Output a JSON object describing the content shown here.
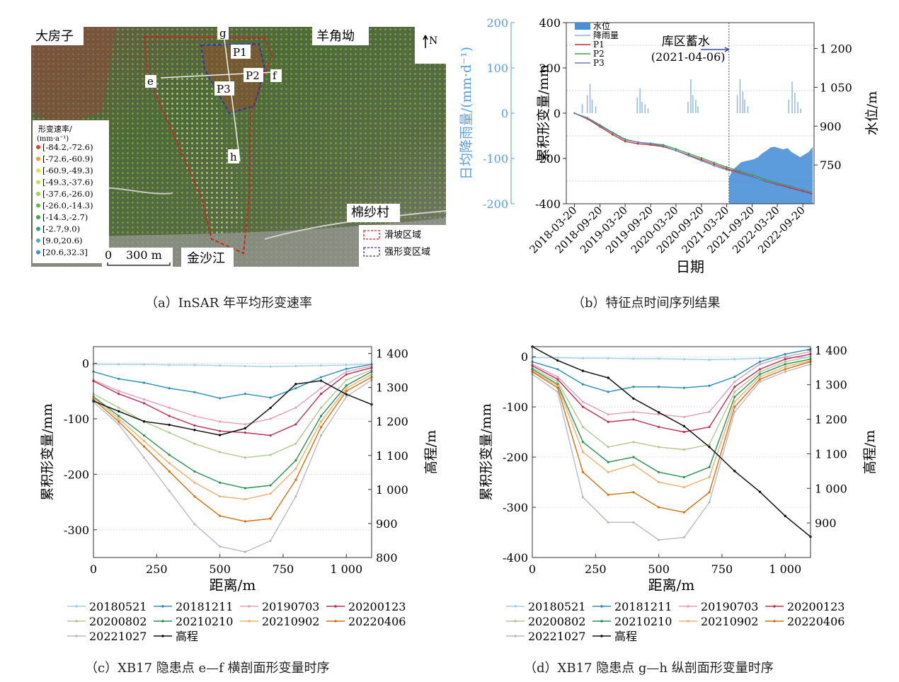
{
  "panels": {
    "a": {
      "caption": "（a）InSAR 年平均形变速率",
      "places": {
        "dafangzi": "大房子",
        "yangjiaogu": "羊角坳",
        "mianshacun": "棉纱村",
        "jinshajiang": "金沙江"
      },
      "points": {
        "g": "g",
        "e": "e",
        "f": "f",
        "h": "h",
        "p1": "P1",
        "p2": "P2",
        "p3": "P3"
      },
      "north": "N",
      "legend_title": "形变速率/",
      "legend_unit": "(mm·a⁻¹)",
      "legend_items": [
        {
          "label": "[-84.2,-72.6)",
          "color": "#e8401e"
        },
        {
          "label": "[-72.6,-60.9)",
          "color": "#f0a030"
        },
        {
          "label": "[-60.9,-49.3)",
          "color": "#e6e234"
        },
        {
          "label": "[-49.3,-37.6)",
          "color": "#c8e040"
        },
        {
          "label": "[-37.6,-26.0)",
          "color": "#9ed64a"
        },
        {
          "label": "[-26.0,-14.3)",
          "color": "#5ebf3c"
        },
        {
          "label": "[-14.3,-2.7)",
          "color": "#3aaa4a"
        },
        {
          "label": "[-2.7,9.0)",
          "color": "#3c9e7a"
        },
        {
          "label": "[9.0,20.6)",
          "color": "#44b2c8"
        },
        {
          "label": "[20.6,32.3]",
          "color": "#3c8ed6"
        }
      ],
      "scale_zero": "0",
      "scale_label": "300 m",
      "zone_legend": [
        {
          "label": "滑坡区域",
          "color": "#d0201c"
        },
        {
          "label": "强形变区域",
          "color": "#2a3aa0"
        }
      ]
    },
    "b_caption": "（b）特征点时间序列结果",
    "c_caption": "（c）XB17 隐患点 e—f 横剖面形变量时序",
    "d_caption": "（d）XB17 隐患点 g—h 纵剖面形变量时序"
  },
  "chart_data": [
    {
      "id": "b",
      "type": "line",
      "xlabel": "日期",
      "ylabel": "累积形变量/mm",
      "y2label": "日均降雨量/(mm·d⁻¹)",
      "y3label": "水位/m",
      "x_range": [
        "2018-01-20",
        "2022-12-10"
      ],
      "x_ticks": [
        "2018-03-20",
        "2018-09-20",
        "2019-03-20",
        "2019-09-20",
        "2020-03-20",
        "2020-09-20",
        "2021-03-20",
        "2021-09-20",
        "2022-03-20",
        "2022-09-20"
      ],
      "ylim": [
        -400,
        400
      ],
      "yticks": [
        -400,
        -200,
        0,
        200,
        400
      ],
      "y2lim": [
        -200,
        200
      ],
      "y2ticks": [
        -200,
        -100,
        0,
        100,
        200
      ],
      "y3lim": [
        600,
        1300
      ],
      "y3ticks": [
        {
          "v": 750,
          "label": "750"
        },
        {
          "v": 900,
          "label": "900"
        },
        {
          "v": 1050,
          "label": "1 050"
        },
        {
          "v": 1200,
          "label": "1 200"
        }
      ],
      "annotation": {
        "text1": "库区蓄水",
        "text2": "(2021-04-06)",
        "date": "2021-04-06"
      },
      "legend": [
        "水位",
        "降雨量",
        "P1",
        "P2",
        "P3"
      ],
      "series": [
        {
          "name": "P1",
          "color": "#c0343a",
          "x": [
            "2018-03-20",
            "2018-06-20",
            "2018-09-20",
            "2018-12-20",
            "2019-03-20",
            "2019-06-20",
            "2019-09-20",
            "2019-12-20",
            "2020-03-20",
            "2020-06-20",
            "2020-09-20",
            "2020-12-20",
            "2021-03-20",
            "2021-06-20",
            "2021-09-20",
            "2021-12-20",
            "2022-03-20",
            "2022-06-20",
            "2022-09-20",
            "2022-11-20"
          ],
          "values": [
            0,
            -25,
            -60,
            -95,
            -125,
            -135,
            -140,
            -148,
            -165,
            -185,
            -205,
            -225,
            -245,
            -262,
            -280,
            -300,
            -315,
            -330,
            -345,
            -355
          ]
        },
        {
          "name": "P2",
          "color": "#3aa050",
          "x": [
            "2018-03-20",
            "2018-06-20",
            "2018-09-20",
            "2018-12-20",
            "2019-03-20",
            "2019-06-20",
            "2019-09-20",
            "2019-12-20",
            "2020-03-20",
            "2020-06-20",
            "2020-09-20",
            "2020-12-20",
            "2021-03-20",
            "2021-06-20",
            "2021-09-20",
            "2021-12-20",
            "2022-03-20",
            "2022-06-20",
            "2022-09-20",
            "2022-11-20"
          ],
          "values": [
            0,
            -22,
            -55,
            -88,
            -118,
            -128,
            -133,
            -140,
            -158,
            -178,
            -198,
            -218,
            -238,
            -255,
            -272,
            -292,
            -308,
            -322,
            -338,
            -348
          ]
        },
        {
          "name": "P3",
          "color": "#6a7cb8",
          "x": [
            "2018-03-20",
            "2018-06-20",
            "2018-09-20",
            "2018-12-20",
            "2019-03-20",
            "2019-06-20",
            "2019-09-20",
            "2019-12-20",
            "2020-03-20",
            "2020-06-20",
            "2020-09-20",
            "2020-12-20",
            "2021-03-20",
            "2021-06-20",
            "2021-09-20",
            "2021-12-20",
            "2022-03-20",
            "2022-06-20",
            "2022-09-20",
            "2022-11-20"
          ],
          "values": [
            0,
            -20,
            -52,
            -85,
            -115,
            -128,
            -135,
            -145,
            -165,
            -188,
            -210,
            -232,
            -250,
            -265,
            -282,
            -298,
            -312,
            -325,
            -340,
            -350
          ]
        }
      ],
      "rainfall": {
        "name": "降雨量",
        "color": "#8ab4e0",
        "x": [
          "2018-05-15",
          "2018-06-20",
          "2018-07-10",
          "2018-07-25",
          "2018-08-20",
          "2019-06-15",
          "2019-07-05",
          "2019-07-20",
          "2019-08-10",
          "2019-09-01",
          "2020-06-15",
          "2020-07-05",
          "2020-07-20",
          "2020-08-10",
          "2020-08-25",
          "2021-06-05",
          "2021-06-25",
          "2021-07-15",
          "2021-07-28",
          "2021-08-20",
          "2022-06-10",
          "2022-07-05",
          "2022-07-25",
          "2022-08-15",
          "2022-09-05"
        ],
        "values": [
          20,
          40,
          65,
          30,
          15,
          35,
          55,
          25,
          20,
          10,
          25,
          75,
          40,
          30,
          15,
          40,
          75,
          48,
          30,
          15,
          30,
          70,
          45,
          25,
          10
        ]
      },
      "water_level": {
        "name": "水位",
        "color": "#4a90d8",
        "x": [
          "2021-04-06",
          "2021-05-01",
          "2021-06-01",
          "2021-07-01",
          "2021-08-01",
          "2021-09-01",
          "2021-10-01",
          "2021-11-01",
          "2021-12-01",
          "2022-01-01",
          "2022-02-01",
          "2022-03-01",
          "2022-04-01",
          "2022-05-01",
          "2022-06-01",
          "2022-07-01",
          "2022-08-01",
          "2022-09-01",
          "2022-10-01",
          "2022-11-01",
          "2022-12-01"
        ],
        "values": [
          700,
          730,
          745,
          760,
          765,
          768,
          772,
          780,
          795,
          805,
          818,
          820,
          815,
          810,
          815,
          800,
          790,
          780,
          790,
          800,
          820
        ]
      }
    },
    {
      "id": "c",
      "type": "line",
      "xlabel": "距离/m",
      "ylabel": "累积形变量/mm",
      "y2label": "高程/m",
      "xlim": [
        0,
        1100
      ],
      "xticks": [
        {
          "v": 0,
          "label": "0"
        },
        {
          "v": 250,
          "label": "250"
        },
        {
          "v": 500,
          "label": "500"
        },
        {
          "v": 750,
          "label": "750"
        },
        {
          "v": 1000,
          "label": "1 000"
        }
      ],
      "ylim": [
        -350,
        30
      ],
      "yticks": [
        -300,
        -200,
        -100,
        0
      ],
      "y2lim": [
        800,
        1420
      ],
      "y2ticks": [
        {
          "v": 800,
          "label": "800"
        },
        {
          "v": 900,
          "label": "900"
        },
        {
          "v": 1000,
          "label": "1 000"
        },
        {
          "v": 1100,
          "label": "1 100"
        },
        {
          "v": 1200,
          "label": "1 200"
        },
        {
          "v": 1300,
          "label": "1 300"
        },
        {
          "v": 1400,
          "label": "1 400"
        }
      ],
      "x": [
        0,
        100,
        200,
        300,
        400,
        500,
        600,
        700,
        800,
        900,
        1000,
        1100
      ],
      "series": [
        {
          "name": "20180521",
          "color": "#9fd0e0",
          "values": [
            -2,
            -2,
            -2,
            -3,
            -3,
            -4,
            -5,
            -6,
            -5,
            -4,
            -3,
            -2
          ]
        },
        {
          "name": "20181211",
          "color": "#2a8fb0",
          "values": [
            -15,
            -28,
            -35,
            -45,
            -52,
            -63,
            -55,
            -62,
            -45,
            -25,
            -10,
            -2
          ]
        },
        {
          "name": "20190703",
          "color": "#e0a0b8",
          "values": [
            -30,
            -50,
            -65,
            -80,
            -95,
            -105,
            -110,
            -100,
            -80,
            -45,
            -15,
            -5
          ]
        },
        {
          "name": "20200123",
          "color": "#b83050",
          "values": [
            -32,
            -55,
            -72,
            -95,
            -112,
            -122,
            -125,
            -130,
            -110,
            -55,
            -20,
            -8
          ]
        },
        {
          "name": "20200802",
          "color": "#b0c890",
          "values": [
            -55,
            -80,
            -105,
            -125,
            -145,
            -160,
            -170,
            -165,
            -145,
            -80,
            -30,
            -12
          ]
        },
        {
          "name": "20210210",
          "color": "#2a9050",
          "values": [
            -60,
            -95,
            -130,
            -165,
            -195,
            -215,
            -225,
            -220,
            -175,
            -95,
            -40,
            -15
          ]
        },
        {
          "name": "20210902",
          "color": "#f0b070",
          "values": [
            -62,
            -100,
            -140,
            -180,
            -215,
            -240,
            -245,
            -235,
            -190,
            -105,
            -45,
            -20
          ]
        },
        {
          "name": "20220406",
          "color": "#d07010",
          "values": [
            -65,
            -105,
            -150,
            -195,
            -240,
            -275,
            -285,
            -280,
            -210,
            -115,
            -50,
            -25
          ]
        },
        {
          "name": "20221027",
          "color": "#b8b8c8",
          "values": [
            -70,
            -110,
            -170,
            -230,
            -290,
            -330,
            -340,
            -320,
            -240,
            -130,
            -60,
            -30
          ]
        }
      ],
      "elevation": {
        "name": "高程",
        "color": "#111111",
        "values": [
          1260,
          1230,
          1200,
          1190,
          1175,
          1160,
          1180,
          1240,
          1310,
          1320,
          1280,
          1250
        ]
      },
      "legend": [
        "20180521",
        "20181211",
        "20190703",
        "20200123",
        "20200802",
        "20210210",
        "20210902",
        "20220406",
        "20221027",
        "高程"
      ]
    },
    {
      "id": "d",
      "type": "line",
      "xlabel": "距离/m",
      "ylabel": "累积形变量/mm",
      "y2label": "高程/m",
      "xlim": [
        0,
        1100
      ],
      "xticks": [
        {
          "v": 0,
          "label": "0"
        },
        {
          "v": 250,
          "label": "250"
        },
        {
          "v": 500,
          "label": "500"
        },
        {
          "v": 750,
          "label": "750"
        },
        {
          "v": 1000,
          "label": "1 000"
        }
      ],
      "ylim": [
        -400,
        20
      ],
      "yticks": [
        -400,
        -300,
        -200,
        -100,
        0
      ],
      "y2lim": [
        800,
        1410
      ],
      "y2ticks": [
        {
          "v": 900,
          "label": "900"
        },
        {
          "v": 1000,
          "label": "1 000"
        },
        {
          "v": 1100,
          "label": "1 100"
        },
        {
          "v": 1200,
          "label": "1 200"
        },
        {
          "v": 1300,
          "label": "1 300"
        },
        {
          "v": 1400,
          "label": "1 400"
        }
      ],
      "x": [
        0,
        100,
        200,
        300,
        400,
        500,
        600,
        700,
        800,
        900,
        1000,
        1100
      ],
      "series": [
        {
          "name": "20180521",
          "color": "#9fd0e0",
          "values": [
            -2,
            -2,
            -3,
            -3,
            -4,
            -4,
            -5,
            -6,
            -5,
            -3,
            -2,
            -1
          ]
        },
        {
          "name": "20181211",
          "color": "#2a8fb0",
          "values": [
            -10,
            -25,
            -55,
            -70,
            -60,
            -60,
            -62,
            -58,
            -40,
            -10,
            5,
            15
          ]
        },
        {
          "name": "20190703",
          "color": "#e0a0b8",
          "values": [
            -15,
            -40,
            -90,
            -115,
            -110,
            -115,
            -120,
            -110,
            -50,
            -15,
            0,
            10
          ]
        },
        {
          "name": "20200123",
          "color": "#b83050",
          "values": [
            -18,
            -45,
            -100,
            -130,
            -125,
            -140,
            -150,
            -140,
            -60,
            -25,
            -5,
            5
          ]
        },
        {
          "name": "20200802",
          "color": "#b0c890",
          "values": [
            -22,
            -50,
            -140,
            -180,
            -170,
            -180,
            -185,
            -175,
            -70,
            -30,
            -10,
            0
          ]
        },
        {
          "name": "20210210",
          "color": "#2a9050",
          "values": [
            -25,
            -55,
            -170,
            -210,
            -200,
            -230,
            -240,
            -220,
            -80,
            -35,
            -15,
            -5
          ]
        },
        {
          "name": "20210902",
          "color": "#f0b070",
          "values": [
            -28,
            -58,
            -190,
            -230,
            -215,
            -250,
            -260,
            -240,
            -90,
            -40,
            -20,
            -8
          ]
        },
        {
          "name": "20220406",
          "color": "#d07010",
          "values": [
            -30,
            -62,
            -230,
            -275,
            -270,
            -300,
            -310,
            -270,
            -100,
            -45,
            -25,
            -10
          ]
        },
        {
          "name": "20221027",
          "color": "#b8b8c8",
          "values": [
            -35,
            -70,
            -280,
            -330,
            -330,
            -365,
            -360,
            -290,
            -110,
            -50,
            -30,
            -15
          ]
        }
      ],
      "elevation": {
        "name": "高程",
        "color": "#111111",
        "values": [
          1410,
          1370,
          1340,
          1320,
          1260,
          1220,
          1180,
          1120,
          1050,
          990,
          920,
          860
        ]
      },
      "legend": [
        "20180521",
        "20181211",
        "20190703",
        "20200123",
        "20200802",
        "20210210",
        "20210902",
        "20220406",
        "20221027",
        "高程"
      ]
    }
  ]
}
